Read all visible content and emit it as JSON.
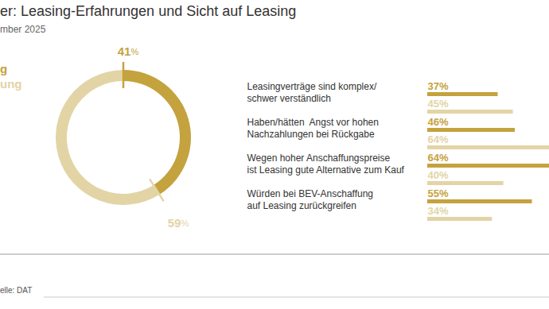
{
  "title": "er: Leasing-Erfahrungen und Sicht auf Leasing",
  "subtitle": "mber 2025",
  "caption": "elle: DAT",
  "chart_data": [
    {
      "type": "pie",
      "values": [
        41,
        59
      ],
      "value_labels": [
        "41%",
        "59%"
      ],
      "colors": [
        "#c4a23e",
        "#e3d4a6"
      ],
      "data_labels": true
    },
    {
      "type": "bar",
      "orientation": "horizontal",
      "categories": [
        "Leasingverträge sind komplex/\nschwer verständlich",
        "Haben/hätten  Angst vor hohen\nNachzahlungen bei Rückgabe",
        "Wegen hoher Anschaffungspreise\nist Leasing gute Alternative zum Kauf",
        "Würden bei BEV-Anschaffung\nauf Leasing zurückgreifen"
      ],
      "series": [
        {
          "name": "g",
          "color": "#c4a23e",
          "values": [
            37,
            46,
            64,
            55
          ],
          "value_labels": [
            "37%",
            "46%",
            "64%",
            "55%"
          ]
        },
        {
          "name": "ung",
          "color": "#e3d4a6",
          "values": [
            45,
            64,
            40,
            34
          ],
          "value_labels": [
            "45%",
            "64%",
            "40%",
            "34%"
          ]
        }
      ],
      "xlim": [
        0,
        64
      ],
      "xticks": [],
      "tick_labels": false,
      "data_labels": true,
      "legend": "top-left"
    }
  ]
}
